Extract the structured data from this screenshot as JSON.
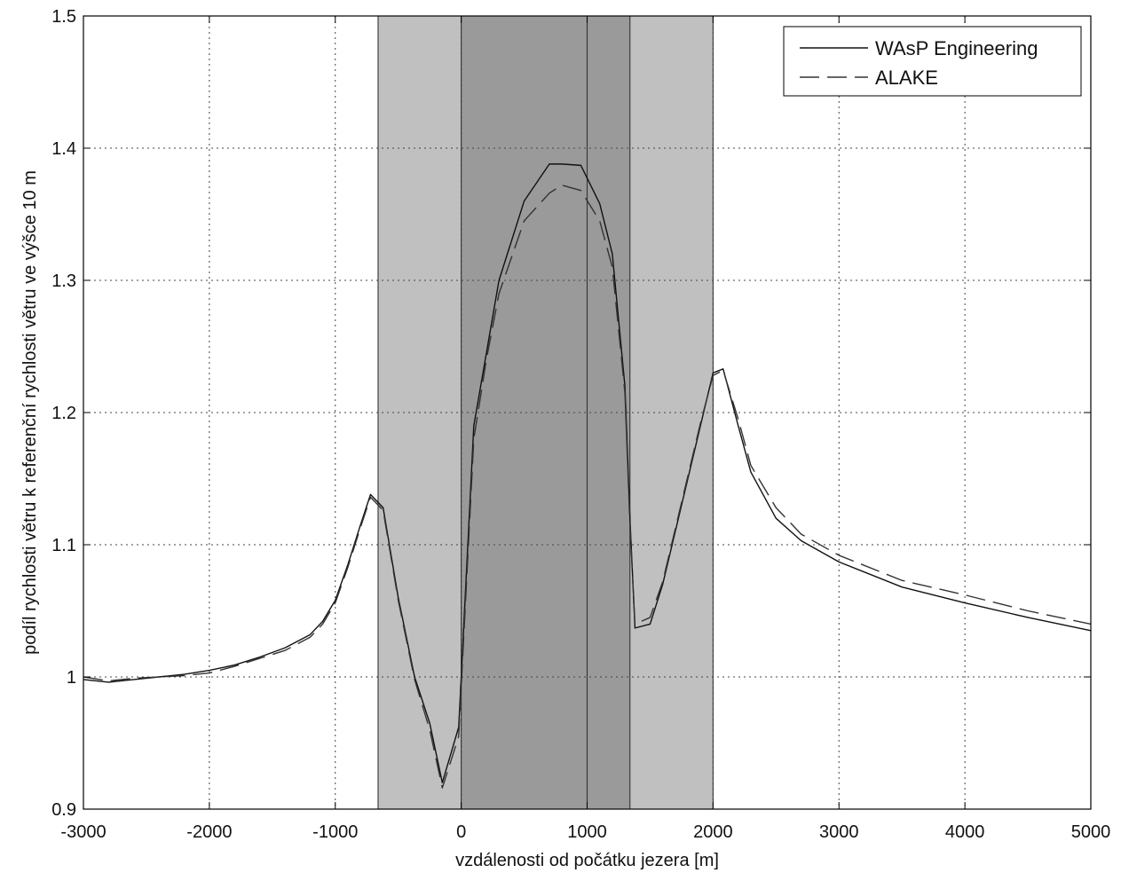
{
  "chart_data": {
    "type": "line",
    "xlabel": "vzdálenosti od počátku jezera [m]",
    "ylabel": "podíl rychlosti větru k referenční rychlosti větru ve výšce 10 m",
    "xlim": [
      -3000,
      5000
    ],
    "ylim": [
      0.9,
      1.5
    ],
    "xticks": [
      -3000,
      -2000,
      -1000,
      0,
      1000,
      2000,
      3000,
      4000,
      5000
    ],
    "yticks": [
      0.9,
      1,
      1.1,
      1.2,
      1.3,
      1.4,
      1.5
    ],
    "xtick_labels": [
      "-3000",
      "-2000",
      "-1000",
      "0",
      "1000",
      "2000",
      "3000",
      "4000",
      "5000"
    ],
    "ytick_labels": [
      "0.9",
      "1",
      "1.1",
      "1.2",
      "1.3",
      "1.4",
      "1.5"
    ],
    "grid": true,
    "legend_position": "top-right",
    "shaded_regions": [
      {
        "x": [
          -660,
          2000
        ],
        "color": "#c0c0c0"
      },
      {
        "x": [
          0,
          1340
        ],
        "color": "#9a9a9a"
      }
    ],
    "vertical_lines": [
      -660,
      0,
      1000,
      1340,
      2000
    ],
    "series": [
      {
        "name": "WAsP Engineering",
        "style": "solid",
        "color": "#111111",
        "x": [
          -3000,
          -2800,
          -2600,
          -2400,
          -2200,
          -2000,
          -1800,
          -1600,
          -1400,
          -1200,
          -1100,
          -1000,
          -900,
          -800,
          -720,
          -620,
          -500,
          -370,
          -250,
          -150,
          -20,
          100,
          200,
          300,
          500,
          700,
          800,
          950,
          1100,
          1200,
          1300,
          1340,
          1380,
          1500,
          1600,
          1700,
          1800,
          1900,
          2000,
          2080,
          2200,
          2300,
          2500,
          2700,
          3000,
          3500,
          4000,
          4500,
          5000
        ],
        "y": [
          0.998,
          0.996,
          0.998,
          1.0,
          1.002,
          1.005,
          1.009,
          1.015,
          1.022,
          1.032,
          1.042,
          1.058,
          1.085,
          1.115,
          1.138,
          1.128,
          1.06,
          1.0,
          0.965,
          0.92,
          0.962,
          1.19,
          1.245,
          1.3,
          1.36,
          1.388,
          1.388,
          1.387,
          1.358,
          1.32,
          1.22,
          1.12,
          1.037,
          1.04,
          1.07,
          1.11,
          1.15,
          1.19,
          1.23,
          1.233,
          1.19,
          1.155,
          1.12,
          1.103,
          1.087,
          1.068,
          1.056,
          1.045,
          1.035
        ]
      },
      {
        "name": "ALAKE",
        "style": "dashed",
        "color": "#333333",
        "x": [
          -3000,
          -2800,
          -2600,
          -2400,
          -2200,
          -2000,
          -1800,
          -1600,
          -1400,
          -1200,
          -1100,
          -1000,
          -900,
          -800,
          -720,
          -620,
          -500,
          -370,
          -250,
          -150,
          -20,
          100,
          200,
          300,
          500,
          700,
          800,
          950,
          1100,
          1200,
          1300,
          1340,
          1380,
          1500,
          1600,
          1700,
          1800,
          1900,
          2000,
          2080,
          2200,
          2300,
          2500,
          2700,
          3000,
          3500,
          4000,
          4500,
          5000
        ],
        "y": [
          1.0,
          0.997,
          0.999,
          1.0,
          1.001,
          1.003,
          1.008,
          1.014,
          1.02,
          1.03,
          1.04,
          1.056,
          1.083,
          1.113,
          1.136,
          1.126,
          1.058,
          0.998,
          0.96,
          0.916,
          0.955,
          1.18,
          1.24,
          1.29,
          1.345,
          1.366,
          1.372,
          1.368,
          1.345,
          1.31,
          1.215,
          1.115,
          1.04,
          1.045,
          1.072,
          1.112,
          1.152,
          1.192,
          1.228,
          1.232,
          1.195,
          1.16,
          1.128,
          1.108,
          1.092,
          1.073,
          1.062,
          1.05,
          1.04
        ]
      }
    ]
  }
}
